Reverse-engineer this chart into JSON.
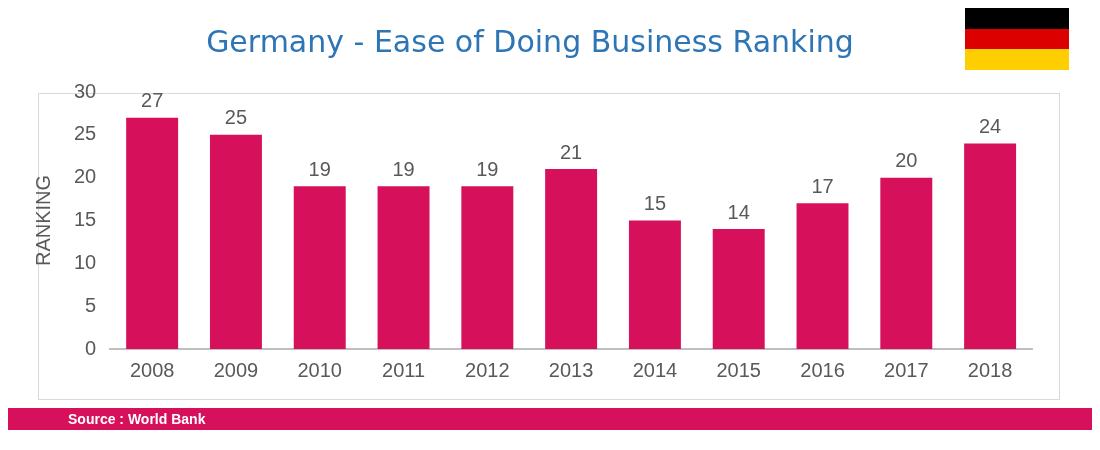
{
  "chart_data": {
    "type": "bar",
    "title": "Germany - Ease of Doing Business Ranking",
    "ylabel": "RANKING",
    "categories": [
      "2008",
      "2009",
      "2010",
      "2011",
      "2012",
      "2013",
      "2014",
      "2015",
      "2016",
      "2017",
      "2018"
    ],
    "values": [
      27,
      25,
      19,
      19,
      19,
      21,
      15,
      14,
      17,
      20,
      24
    ],
    "color": "#d6105a",
    "ylim": [
      0,
      30
    ],
    "yticks": [
      0,
      5,
      10,
      15,
      20,
      25,
      30
    ],
    "grid": false,
    "legend": false,
    "data_labels": true,
    "annotations": [
      "Source : World Bank"
    ]
  }
}
